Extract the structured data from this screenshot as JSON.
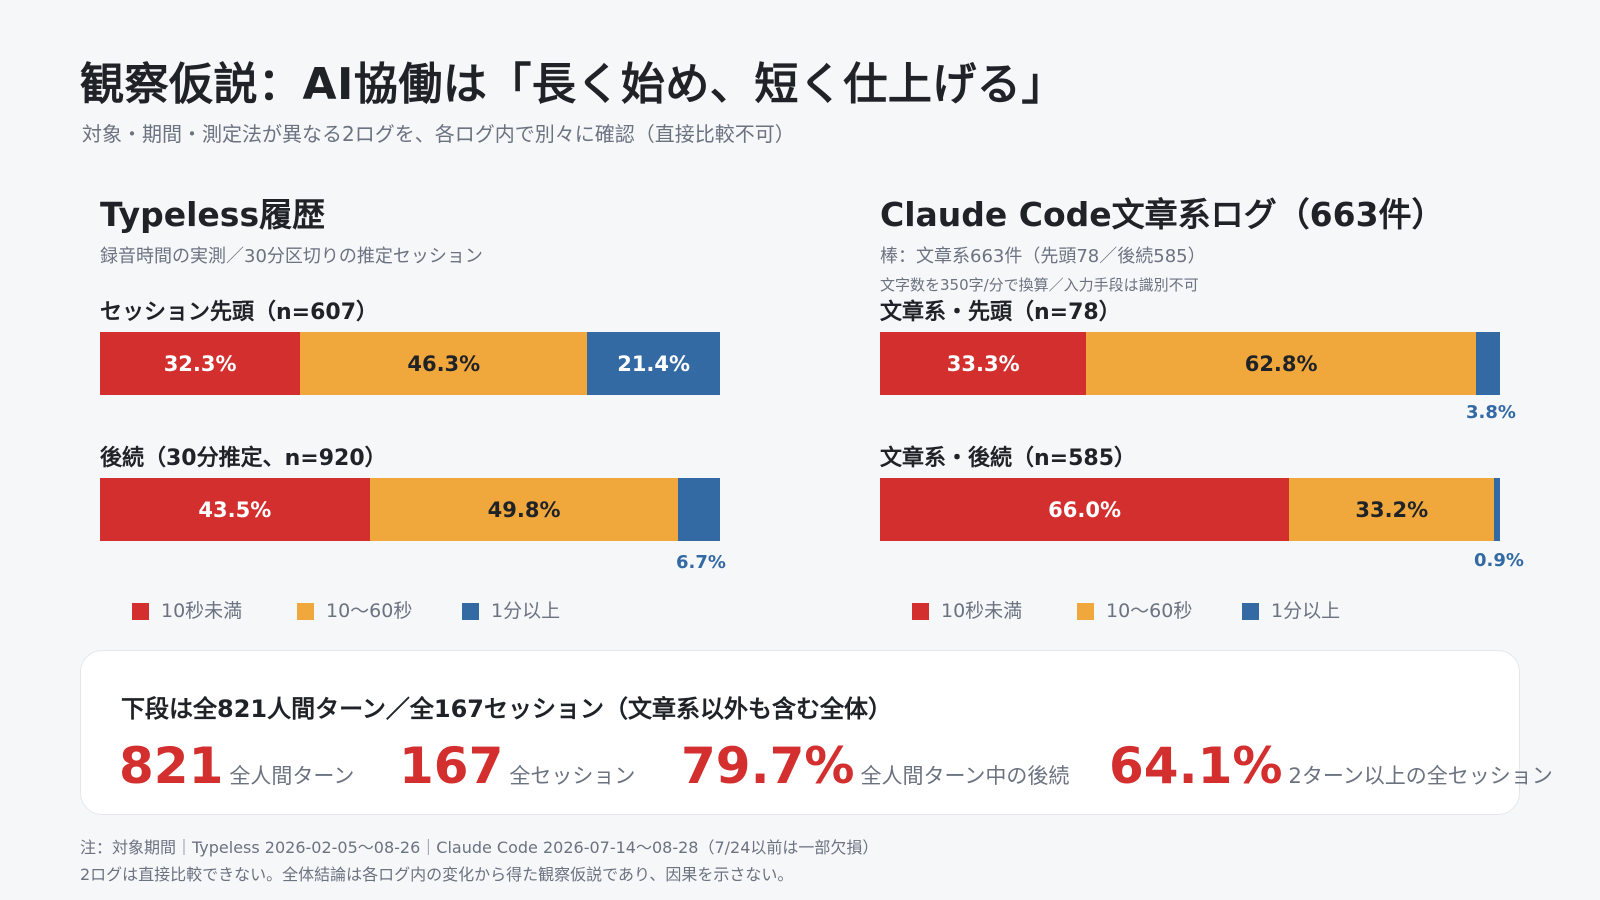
{
  "title": "観察仮説：AI協働は「長く始め、短く仕上げる」",
  "subtitle": "対象・期間・測定法が異なる2ログを、各ログ内で別々に確認（直接比較不可）",
  "colors": {
    "under10s": "#d32f2f",
    "10to60s": "#f0a73c",
    "over1min": "#336aa4"
  },
  "legend": [
    "10秒未満",
    "10〜60秒",
    "1分以上"
  ],
  "panels": {
    "left": {
      "title": "Typeless履歴",
      "subtitle": "録音時間の実測／30分区切りの推定セッション",
      "bar1_label": "セッション先頭（n=607）",
      "bar2_label": "後続（30分推定、n=920）",
      "v1": [
        "32.3%",
        "46.3%",
        "21.4%"
      ],
      "v2": [
        "43.5%",
        "49.8%",
        "6.7%"
      ]
    },
    "right": {
      "title": "Claude Code文章系ログ（663件）",
      "subtitle": "棒：文章系663件（先頭78／後続585）",
      "subtitle2": "文字数を350字/分で換算／入力手段は識別不可",
      "bar1_label": "文章系・先頭（n=78）",
      "bar2_label": "文章系・後続（n=585）",
      "v1": [
        "33.3%",
        "62.8%",
        "3.8%"
      ],
      "v2": [
        "66.0%",
        "33.2%",
        "0.9%"
      ]
    }
  },
  "chart_data": [
    {
      "type": "bar",
      "stacked": true,
      "orientation": "horizontal",
      "title": "Typeless履歴",
      "categories": [
        "セッション先頭（n=607）",
        "後続（30分推定、n=920）"
      ],
      "series": [
        {
          "name": "10秒未満",
          "values": [
            32.3,
            43.5
          ]
        },
        {
          "name": "10〜60秒",
          "values": [
            46.3,
            49.8
          ]
        },
        {
          "name": "1分以上",
          "values": [
            21.4,
            6.7
          ]
        }
      ],
      "xlim": [
        0,
        100
      ],
      "legend": "bottom"
    },
    {
      "type": "bar",
      "stacked": true,
      "orientation": "horizontal",
      "title": "Claude Code文章系ログ（663件）",
      "categories": [
        "文章系・先頭（n=78）",
        "文章系・後続（n=585）"
      ],
      "series": [
        {
          "name": "10秒未満",
          "values": [
            33.3,
            66.0
          ]
        },
        {
          "name": "10〜60秒",
          "values": [
            62.8,
            33.2
          ]
        },
        {
          "name": "1分以上",
          "values": [
            3.8,
            0.9
          ]
        }
      ],
      "xlim": [
        0,
        100
      ],
      "legend": "bottom"
    }
  ],
  "summary": {
    "title": "下段は全821人間ターン／全167セッション（文章系以外も含む全体）",
    "stats": [
      {
        "value": "821",
        "label": "全人間ターン"
      },
      {
        "value": "167",
        "label": "全セッション"
      },
      {
        "value": "79.7%",
        "label": "全人間ターン中の後続"
      },
      {
        "value": "64.1%",
        "label": "2ターン以上の全セッション"
      }
    ]
  },
  "notes": [
    "注：対象期間｜Typeless 2026-02-05〜08-26｜Claude Code 2026-07-14〜08-28（7/24以前は一部欠損）",
    "2ログは直接比較できない。全体結論は各ログ内の変化から得た観察仮説であり、因果を示さない。"
  ]
}
